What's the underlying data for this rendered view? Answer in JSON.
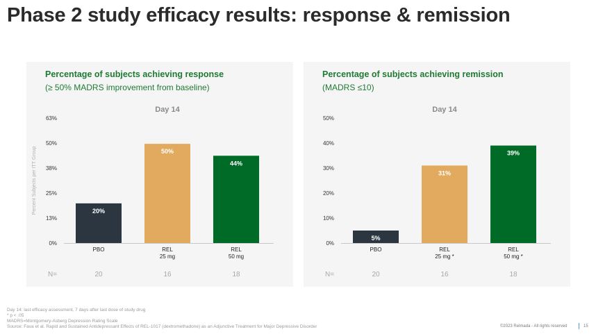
{
  "title": "Phase 2 study efficacy results: response & remission",
  "footnotes": [
    "Day 14: last efficacy assessment, 7 days after last dose of study drug",
    "* p < .05",
    "MADRS=Montgomery-Asberg Depression Rating Scale",
    "Source:  Fava et al. Rapid and Sustained Antidepressant Effects of REL-1017 (dextromethadone) as an Adjunctive Treatment for Major Depressive Disorder"
  ],
  "copyright": "©2023 Relmada - All rights reserved",
  "page_number": "15",
  "colors": {
    "pbo": "#2b3640",
    "rel25": "#e2aa5e",
    "rel50": "#006b26",
    "title_green": "#1f7a33"
  },
  "panels": [
    {
      "heading": "Percentage of subjects achieving response",
      "subheading": "(≥ 50% MADRS improvement from baseline)"
    },
    {
      "heading": "Percentage of subjects achieving remission",
      "subheading": "(MADRS ≤10)"
    }
  ],
  "chart_data": [
    {
      "type": "bar",
      "title": "Day 14",
      "ylabel": "Percent Subjects per ITT Group",
      "yticks": [
        "0%",
        "13%",
        "25%",
        "38%",
        "50%",
        "63%"
      ],
      "ylim": [
        0,
        63
      ],
      "categories": [
        "PBO",
        "REL\n25 mg",
        "REL\n50 mg"
      ],
      "values": [
        20,
        50,
        44
      ],
      "data_labels": [
        "20%",
        "50%",
        "44%"
      ],
      "n_label": "N=",
      "n_values": [
        "20",
        "16",
        "18"
      ],
      "grid": false
    },
    {
      "type": "bar",
      "title": "Day 14",
      "ylabel": "",
      "yticks": [
        "0%",
        "10%",
        "20%",
        "30%",
        "40%",
        "50%"
      ],
      "ylim": [
        0,
        50
      ],
      "categories": [
        "PBO",
        "REL\n25 mg *",
        "REL\n50 mg *"
      ],
      "values": [
        5,
        31,
        39
      ],
      "data_labels": [
        "5%",
        "31%",
        "39%"
      ],
      "n_label": "N=",
      "n_values": [
        "20",
        "16",
        "18"
      ],
      "grid": false
    }
  ]
}
